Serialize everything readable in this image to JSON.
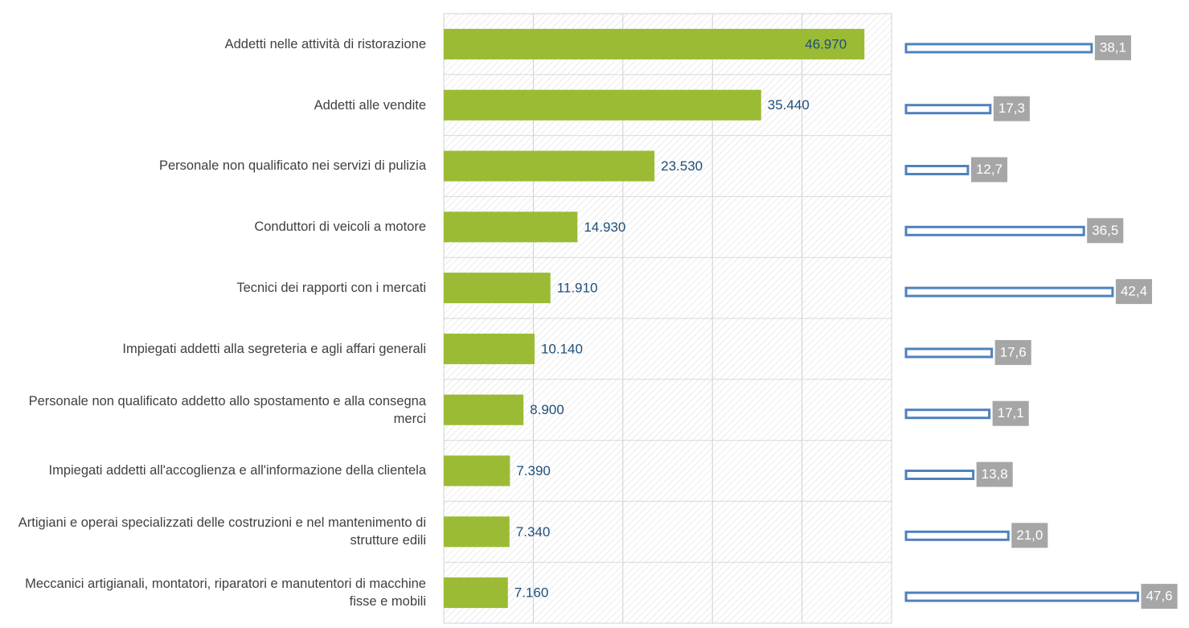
{
  "chart_data": [
    {
      "type": "bar",
      "orientation": "horizontal",
      "categories": [
        "Addetti nelle attività di ristorazione",
        "Addetti alle vendite",
        "Personale non qualificato nei servizi di pulizia",
        "Conduttori di veicoli a motore",
        "Tecnici dei rapporti con i mercati",
        "Impiegati addetti alla segreteria e agli affari generali",
        "Personale non qualificato addetto allo spostamento e alla consegna merci",
        "Impiegati addetti all'accoglienza e all'informazione della clientela",
        "Artigiani e operai specializzati delle costruzioni e nel mantenimento di strutture edili",
        "Meccanici artigianali, montatori, riparatori e manutentori di macchine fisse e mobili"
      ],
      "values": [
        46970,
        35440,
        23530,
        14930,
        11910,
        10140,
        8900,
        7390,
        7340,
        7160
      ],
      "value_labels": [
        "46.970",
        "35.440",
        "23.530",
        "14.930",
        "11.910",
        "10.140",
        "8.900",
        "7.390",
        "7.340",
        "7.160"
      ],
      "color": "#9bbb35",
      "xlim": [
        0,
        50000
      ],
      "xticks": [
        0,
        10000,
        20000,
        30000,
        40000,
        50000
      ],
      "grid": true
    },
    {
      "type": "bar",
      "orientation": "horizontal",
      "values": [
        38.1,
        17.3,
        12.7,
        36.5,
        42.4,
        17.6,
        17.1,
        13.8,
        21.0,
        47.6
      ],
      "value_labels": [
        "38,1",
        "17,3",
        "12,7",
        "36,5",
        "42,4",
        "17,6",
        "17,1",
        "13,8",
        "21,0",
        "47,6"
      ],
      "color": "#4f81bd",
      "xlim": [
        0,
        50
      ]
    }
  ]
}
